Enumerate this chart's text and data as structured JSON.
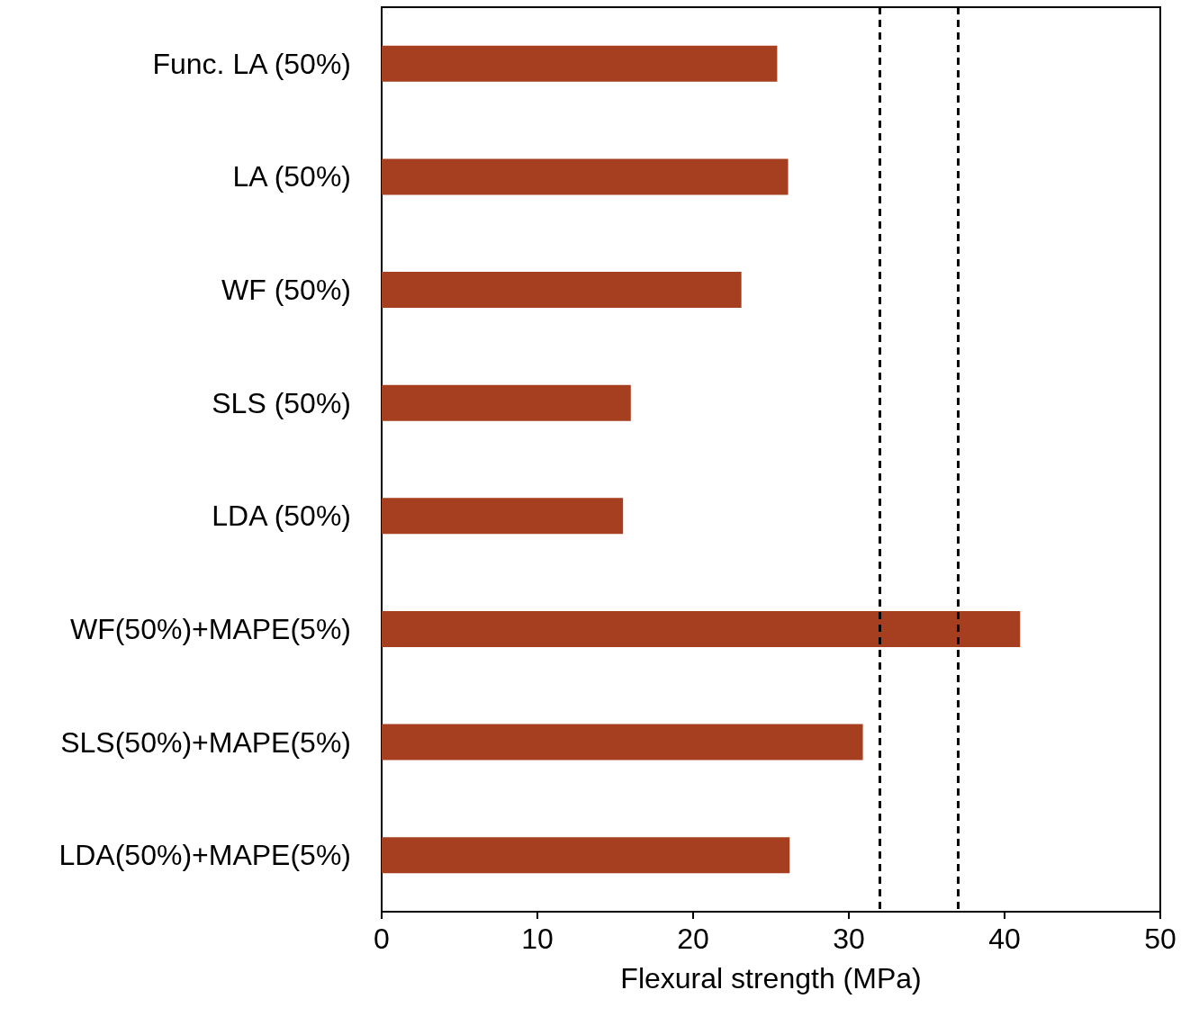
{
  "chart_data": {
    "type": "bar",
    "orientation": "horizontal",
    "xlabel": "Flexural strength (MPa)",
    "categories": [
      "Func. LA (50%)",
      "LA (50%)",
      "WF (50%)",
      "SLS (50%)",
      "LDA (50%)",
      "WF(50%)+MAPE(5%)",
      "SLS(50%)+MAPE(5%)",
      "LDA(50%)+MAPE(5%)"
    ],
    "values": [
      25.4,
      26.1,
      23.1,
      16.0,
      15.5,
      41.0,
      30.9,
      26.2
    ],
    "color": "#a63f1f",
    "xlim": [
      0,
      50
    ],
    "xticks": [
      0,
      10,
      20,
      30,
      40,
      50
    ],
    "ref_lines": [
      {
        "axis": "x",
        "value": 32,
        "color": "#000000",
        "line_style": "dashed"
      },
      {
        "axis": "x",
        "value": 37,
        "color": "#000000",
        "line_style": "dashed"
      }
    ],
    "grid": false
  }
}
